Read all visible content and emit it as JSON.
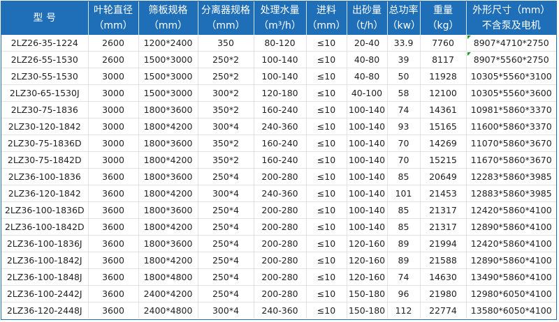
{
  "headers": [
    {
      "line1": "型 号",
      "line2": ""
    },
    {
      "line1": "叶轮直径",
      "line2": "（mm）"
    },
    {
      "line1": "筛板规格",
      "line2": "（mm）"
    },
    {
      "line1": "分离器规格",
      "line2": "（mm）"
    },
    {
      "line1": "处理水量",
      "line2": "（m³/h）"
    },
    {
      "line1": "进料",
      "line2": "（mm）"
    },
    {
      "line1": "出砂量",
      "line2": "（t/h）"
    },
    {
      "line1": "总功率",
      "line2": "（kw）"
    },
    {
      "line1": "重量",
      "line2": "（kg）"
    },
    {
      "line1": "外形尺寸（mm）",
      "line2": "不含泵及电机"
    }
  ],
  "colors": {
    "header_bg": "#1e6fb8",
    "header_text": "#ffffff",
    "comment_marker": "#1a9a1a"
  },
  "rows": [
    [
      "2LZ26-35-1224",
      "2600",
      "1200*2400",
      "350",
      "80-120",
      "≤10",
      "20-40",
      "33.9",
      "7760",
      "8907*4710*2750"
    ],
    [
      "2LZ26-55-1530",
      "2600",
      "1500*3000",
      "250*2",
      "100-140",
      "≤10",
      "40-80",
      "39",
      "8117",
      "8907*5560*2750"
    ],
    [
      "2LZ30-55-1530",
      "3000",
      "1500*3000",
      "250*2",
      "100-140",
      "≤10",
      "40-80",
      "50",
      "11928",
      "10305*5560*3100"
    ],
    [
      "2LZ30-65-1530J",
      "3000",
      "1500*3000",
      "300*2",
      "120-180",
      "≤10",
      "40-100",
      "58",
      "12100",
      "10305*5560*3600"
    ],
    [
      "2LZ30-75-1836",
      "3000",
      "1800*3600",
      "350*2",
      "160-240",
      "≤10",
      "100-140",
      "74",
      "14361",
      "10981*5860*3370"
    ],
    [
      "2LZ30-120-1842",
      "3000",
      "1800*4200",
      "300*4",
      "240-360",
      "≤10",
      "100-140",
      "93",
      "15165",
      "11600*5860*3370"
    ],
    [
      "2LZ30-75-1836D",
      "3000",
      "1800*3600",
      "350*2",
      "160-240",
      "≤10",
      "100-140",
      "70",
      "14269",
      "11070*5860*3670"
    ],
    [
      "2LZ30-75-1842D",
      "3000",
      "1800*4200",
      "350*2",
      "160-240",
      "≤10",
      "100-140",
      "70",
      "15215",
      "11670*5860*3670"
    ],
    [
      "2LZ36-100-1836",
      "3600",
      "1800*3600",
      "250*4",
      "200-280",
      "≤10",
      "100-140",
      "85",
      "20649",
      "12283*5860*3985"
    ],
    [
      "2LZ36-120-1842",
      "3600",
      "1800*4200",
      "300*4",
      "240-360",
      "≤10",
      "100-140",
      "101",
      "21453",
      "12883*5860*3985"
    ],
    [
      "2LZ36-100-1836D",
      "3600",
      "1800*3600",
      "250*4",
      "200-280",
      "≤10",
      "100-140",
      "85",
      "21317",
      "12420*5860*4100"
    ],
    [
      "2LZ36-100-1842D",
      "3600",
      "1800*4200",
      "250*4",
      "200-280",
      "≤10",
      "100-140",
      "85",
      "21317",
      "12890*5860*4100"
    ],
    [
      "2LZ36-100-1836J",
      "3600",
      "1800*3600",
      "250*4",
      "200-280",
      "≤10",
      "120-160",
      "89",
      "21994",
      "12420*5860*4100"
    ],
    [
      "2LZ36-100-1842J",
      "3600",
      "1800*4200",
      "250*4",
      "200-280",
      "≤10",
      "120-160",
      "89",
      "21588",
      "12890*5860*4100"
    ],
    [
      "2LZ36-100-1848J",
      "3600",
      "1800*4800",
      "250*4",
      "200-280",
      "≤10",
      "120-160",
      "74",
      "14630",
      "13490*5860*4100"
    ],
    [
      "2LZ36-100-2442J",
      "3600",
      "2400*4200",
      "250*4",
      "200-280",
      "≤10",
      "150-180",
      "96",
      "21980",
      "12980*6050*4100"
    ],
    [
      "2LZ36-120-2448J",
      "3600",
      "2400*4800",
      "300*4",
      "240-360",
      "≤10",
      "150-180",
      "112",
      "22774",
      "13580*6050*4100"
    ]
  ]
}
